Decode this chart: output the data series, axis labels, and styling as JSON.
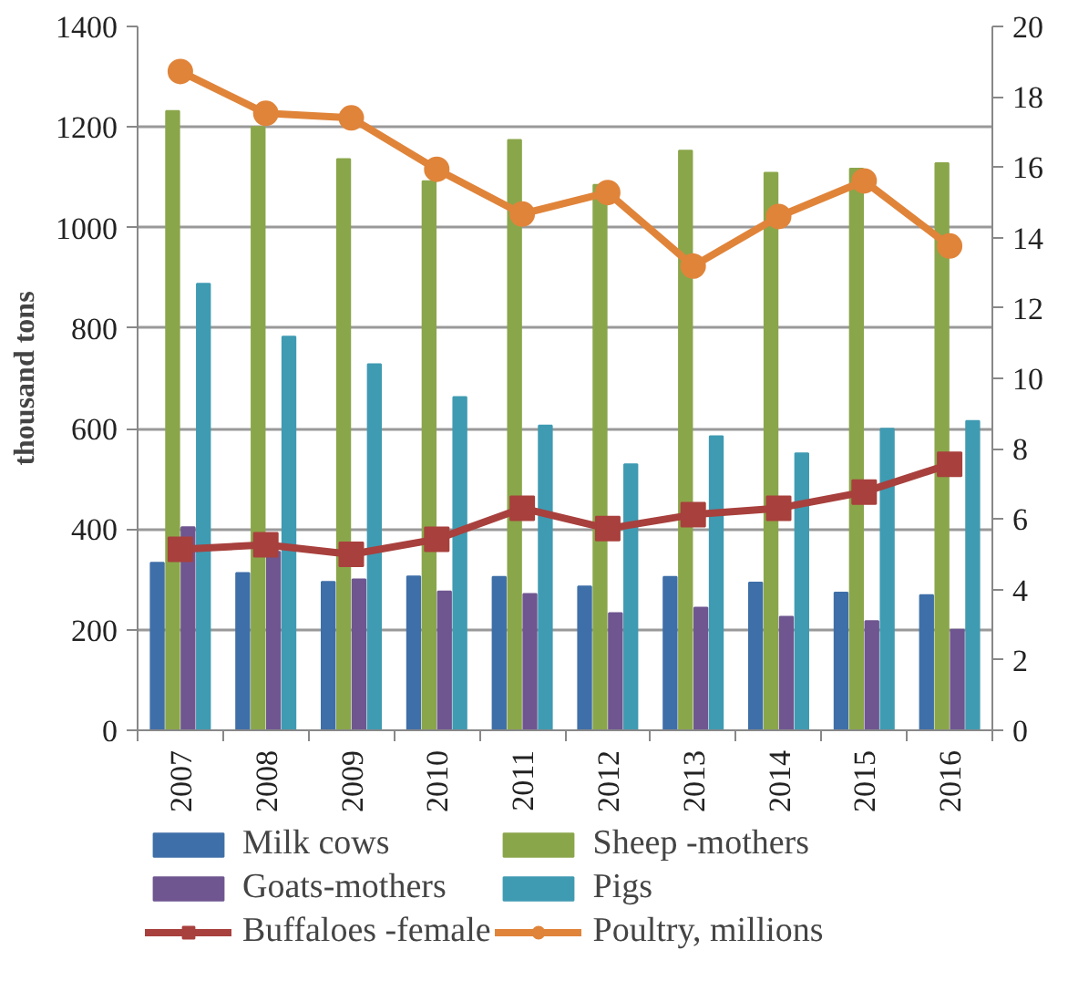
{
  "chart_data": {
    "type": "bar",
    "ylabel": "thousand tons",
    "categories": [
      "2007",
      "2008",
      "2009",
      "2010",
      "2011",
      "2012",
      "2013",
      "2014",
      "2015",
      "2016"
    ],
    "series": [
      {
        "name": "Milk cows",
        "color": "#3f6fa8",
        "values": [
          333,
          313,
          295,
          306,
          305,
          286,
          305,
          294,
          274,
          269
        ]
      },
      {
        "name": "Sheep -mothers",
        "color": "#8aa64a",
        "values": [
          1232,
          1200,
          1136,
          1092,
          1174,
          1085,
          1153,
          1109,
          1117,
          1128
        ]
      },
      {
        "name": "Goats-mothers",
        "color": "#6f5690",
        "values": [
          404,
          355,
          300,
          276,
          271,
          233,
          244,
          226,
          217,
          200
        ]
      },
      {
        "name": "Pigs",
        "color": "#3f9bb2",
        "values": [
          888,
          783,
          728,
          663,
          606,
          529,
          585,
          551,
          600,
          615
        ]
      },
      {
        "name": "Buffaloes -female",
        "type": "line",
        "marker": "square",
        "axis": "y2",
        "color": "#a8403d",
        "values": [
          5.14,
          5.27,
          5.0,
          5.43,
          6.31,
          5.73,
          6.13,
          6.31,
          6.77,
          7.56
        ]
      },
      {
        "name": "Poultry, millions",
        "type": "line",
        "marker": "circle",
        "axis": "y2",
        "color": "#e0843a",
        "values": [
          18.72,
          17.53,
          17.4,
          15.94,
          14.67,
          15.28,
          13.19,
          14.6,
          15.61,
          13.76
        ]
      }
    ],
    "ylim": [
      0,
      1400
    ],
    "yticks": [
      0,
      200,
      400,
      600,
      800,
      1000,
      1200,
      1400
    ],
    "y2lim": [
      0,
      20
    ],
    "y2ticks": [
      0,
      2,
      4,
      6,
      8,
      10,
      12,
      14,
      16,
      18,
      20
    ],
    "grid": "y",
    "legend": "bottom"
  }
}
